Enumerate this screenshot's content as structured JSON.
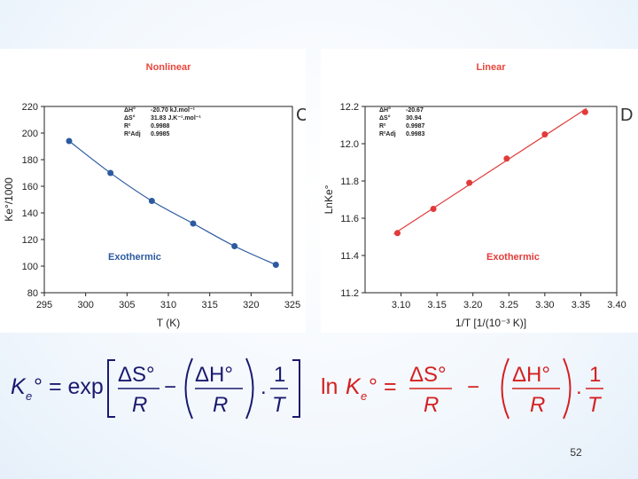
{
  "colors": {
    "title": "#e8463a",
    "left_series": "#2c5aa0",
    "right_series": "#e23a3a",
    "left_equation": "#1a1a6e",
    "right_equation": "#d42020"
  },
  "page_number": "52",
  "chart_data": [
    {
      "type": "scatter",
      "title": "Nonlinear",
      "panel_letter": "C",
      "xlabel": "T (K)",
      "ylabel": "Ke°/1000",
      "xlim": [
        295,
        325
      ],
      "ylim": [
        80,
        220
      ],
      "xticks": [
        "295",
        "300",
        "305",
        "310",
        "315",
        "320",
        "325"
      ],
      "yticks": [
        "80",
        "100",
        "120",
        "140",
        "160",
        "180",
        "200",
        "220"
      ],
      "x": [
        298,
        303,
        308,
        313,
        318,
        323
      ],
      "y": [
        194,
        170,
        149,
        132,
        115,
        101
      ],
      "fit": "curve",
      "annotation": "Exothermic",
      "stats": [
        {
          "label": "ΔH°",
          "value": "-20.70 kJ.mol⁻¹"
        },
        {
          "label": "ΔS°",
          "value": "31.83 J.K⁻¹.mol⁻¹"
        },
        {
          "label": "R²",
          "value": "0.9988"
        },
        {
          "label": "R²Adj",
          "value": "0.9985"
        }
      ]
    },
    {
      "type": "scatter",
      "title": "Linear",
      "panel_letter": "D",
      "xlabel": "1/T  [1/(10⁻³ K)]",
      "ylabel": "LnKe°",
      "xlim": [
        3.05,
        3.4
      ],
      "ylim": [
        11.2,
        12.2
      ],
      "xticks": [
        "3.10",
        "3.15",
        "3.20",
        "3.25",
        "3.30",
        "3.35",
        "3.40"
      ],
      "yticks": [
        "11.2",
        "11.4",
        "11.6",
        "11.8",
        "12.0",
        "12.2"
      ],
      "x": [
        3.095,
        3.145,
        3.195,
        3.247,
        3.3,
        3.356
      ],
      "y": [
        11.52,
        11.65,
        11.79,
        11.92,
        12.05,
        12.17
      ],
      "fit": "linear",
      "annotation": "Exothermic",
      "stats": [
        {
          "label": "ΔH°",
          "value": "-20.67"
        },
        {
          "label": "ΔS°",
          "value": "30.94"
        },
        {
          "label": "R²",
          "value": "0.9987"
        },
        {
          "label": "R²Adj",
          "value": "0.9983"
        }
      ]
    }
  ],
  "equations": {
    "left": "Ke° = exp[ΔS°/R − (ΔH°/R)·(1/T)]",
    "right": "ln Ke° = ΔS°/R − (ΔH°/R)·(1/T)"
  }
}
